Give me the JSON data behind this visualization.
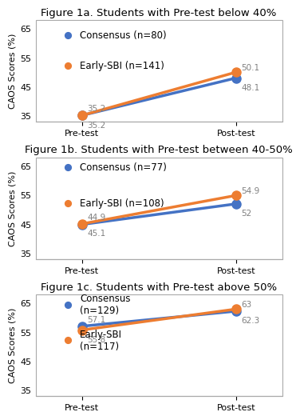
{
  "panels": [
    {
      "title": "Figure 1a. Students with Pre-test below 40%",
      "consensus_label": "Consensus (n=80)",
      "earlysbi_label": "Early-SBI (n=141)",
      "consensus_pre": 35.2,
      "consensus_post": 48.1,
      "earlysbi_pre": 35.2,
      "earlysbi_post": 50.1,
      "label_consensus_pre": "35.2",
      "label_earlysbi_pre": "35.2",
      "label_consensus_post": "48.1",
      "label_earlysbi_post": "50.1",
      "consensus_label_multiline": false,
      "earlysbi_label_multiline": false
    },
    {
      "title": "Figure 1b. Students with Pre-test between 40-50%",
      "consensus_label": "Consensus (n=77)",
      "earlysbi_label": "Early-SBI (n=108)",
      "consensus_pre": 44.9,
      "consensus_post": 52,
      "earlysbi_pre": 45.1,
      "earlysbi_post": 54.9,
      "label_consensus_pre": "44.9",
      "label_earlysbi_pre": "45.1",
      "label_consensus_post": "52",
      "label_earlysbi_post": "54.9",
      "consensus_label_multiline": false,
      "earlysbi_label_multiline": false
    },
    {
      "title": "Figure 1c. Students with Pre-test above 50%",
      "consensus_label": "Consensus\n(n=129)",
      "earlysbi_label": "Early-SBI\n(n=117)",
      "consensus_pre": 57.1,
      "consensus_post": 62.3,
      "earlysbi_pre": 55.8,
      "earlysbi_post": 63,
      "label_consensus_pre": "57.1",
      "label_earlysbi_pre": "55.8",
      "label_consensus_post": "62.3",
      "label_earlysbi_post": "63",
      "consensus_label_multiline": true,
      "earlysbi_label_multiline": true
    }
  ],
  "consensus_color": "#4472C4",
  "earlysbi_color": "#ED7D31",
  "ylim": [
    33,
    68
  ],
  "yticks": [
    35,
    45,
    55,
    65
  ],
  "xtick_labels": [
    "Pre-test",
    "Post-test"
  ],
  "ylabel": "CAOS Scores (%)",
  "annotation_color": "#808080",
  "bg_color": "#FFFFFF",
  "border_color": "#AAAAAA",
  "title_fontsize": 9.5,
  "label_fontsize": 8.5,
  "tick_fontsize": 8,
  "annotation_fontsize": 7.5,
  "line_width": 2.5,
  "marker_size": 8
}
